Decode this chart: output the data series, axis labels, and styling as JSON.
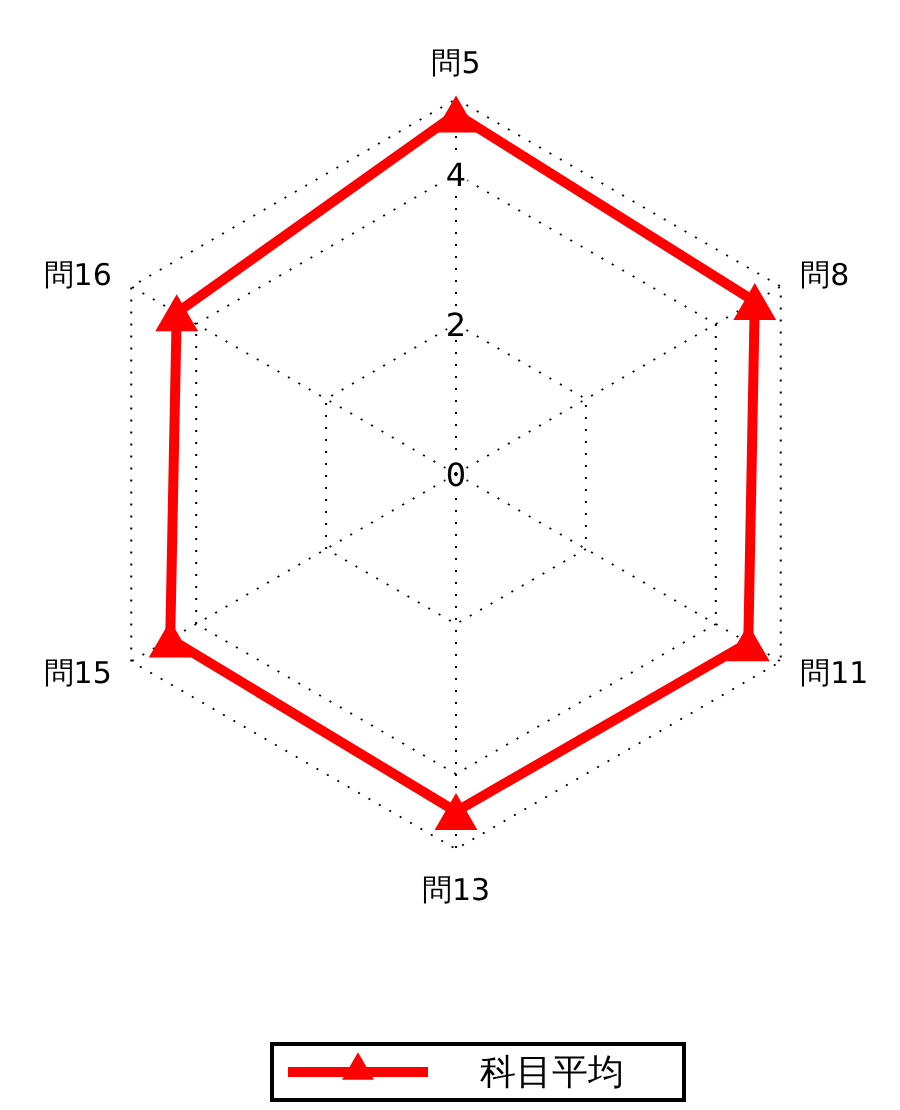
{
  "chart_data": {
    "type": "radar",
    "categories": [
      "問5",
      "問8",
      "問11",
      "問13",
      "問15",
      "問16"
    ],
    "series": [
      {
        "name": "科目平均",
        "color": "#ff0000",
        "values": [
          4.8,
          4.6,
          4.5,
          4.5,
          4.4,
          4.3
        ]
      }
    ],
    "ylim": [
      0,
      5
    ],
    "yticks": [
      0,
      2,
      4
    ],
    "grid": true,
    "legend": "bottom",
    "marker": "triangle",
    "line_style": "solid"
  }
}
